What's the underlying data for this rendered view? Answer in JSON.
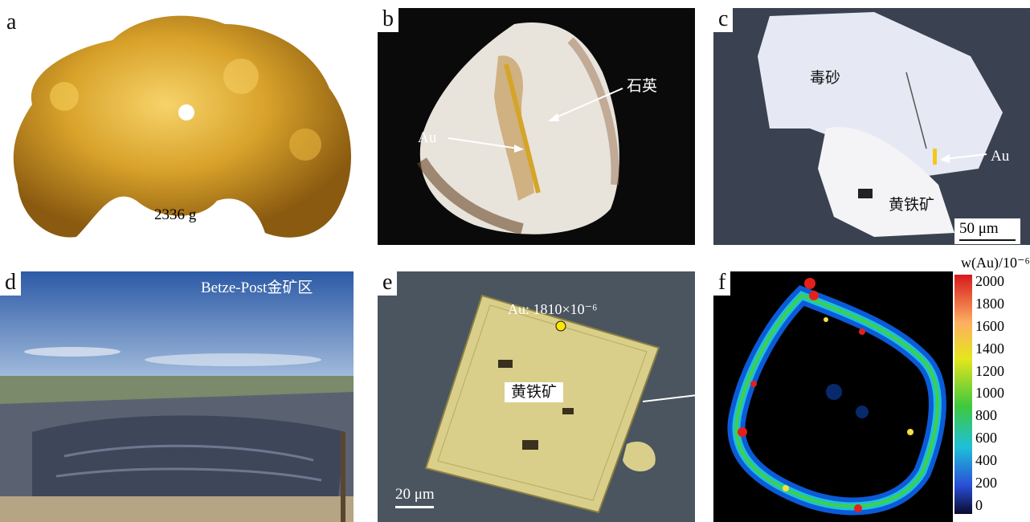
{
  "panels": {
    "a": {
      "label": "a",
      "mass": "2336 g"
    },
    "b": {
      "label": "b",
      "quartz": "石英",
      "au": "Au"
    },
    "c": {
      "label": "c",
      "arsenopyrite": "毒砂",
      "au": "Au",
      "pyrite": "黄铁矿",
      "scale": "50 μm"
    },
    "d": {
      "label": "d",
      "site": "Betze-Post金矿区"
    },
    "e": {
      "label": "e",
      "au_reading": "Au: 1810×10⁻⁶",
      "pyrite": "黄铁矿",
      "scale": "20 μm"
    },
    "f": {
      "label": "f"
    }
  },
  "colorbar": {
    "title": "w(Au)/10⁻⁶",
    "ticks": [
      "2000",
      "1800",
      "1600",
      "1400",
      "1200",
      "1000",
      "800",
      "600",
      "400",
      "200",
      "0"
    ]
  }
}
